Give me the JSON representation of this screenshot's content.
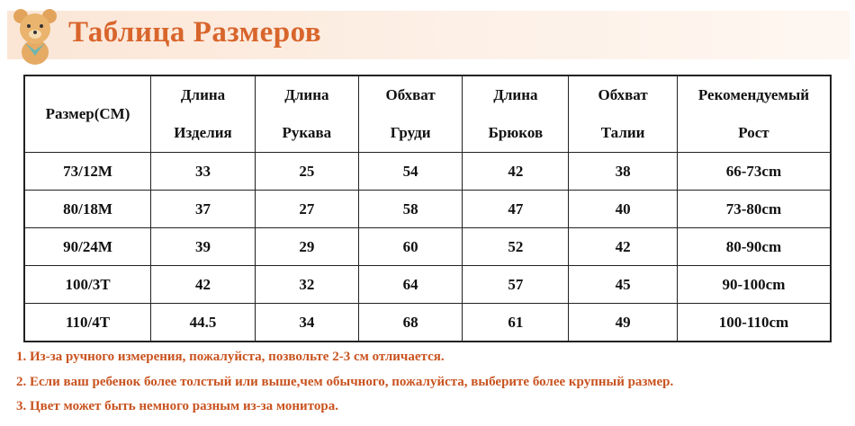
{
  "header": {
    "title": "Таблица Размеров"
  },
  "table": {
    "headers": [
      [
        "Размер(СМ)"
      ],
      [
        "Длина",
        "Изделия"
      ],
      [
        "Длина",
        "Рукава"
      ],
      [
        "Обхват",
        "Груди"
      ],
      [
        "Длина",
        "Брюков"
      ],
      [
        "Обхват",
        "Талии"
      ],
      [
        "Рекомендуемый",
        "Рост"
      ]
    ],
    "rows": [
      [
        "73/12M",
        "33",
        "25",
        "54",
        "42",
        "38",
        "66-73cm"
      ],
      [
        "80/18M",
        "37",
        "27",
        "58",
        "47",
        "40",
        "73-80cm"
      ],
      [
        "90/24M",
        "39",
        "29",
        "60",
        "52",
        "42",
        "80-90cm"
      ],
      [
        "100/3T",
        "42",
        "32",
        "64",
        "57",
        "45",
        "90-100cm"
      ],
      [
        "110/4T",
        "44.5",
        "34",
        "68",
        "61",
        "49",
        "100-110cm"
      ]
    ]
  },
  "notes": [
    "1. Из-за ручного измерения, пожалуйста, позвольте 2-3 см отличается.",
    "2. Если ваш ребенок более толстый или выше,чем обычного, пожалуйста, выберите более крупный размер.",
    "3. Цвет может быть немного разным из-за монитора."
  ]
}
